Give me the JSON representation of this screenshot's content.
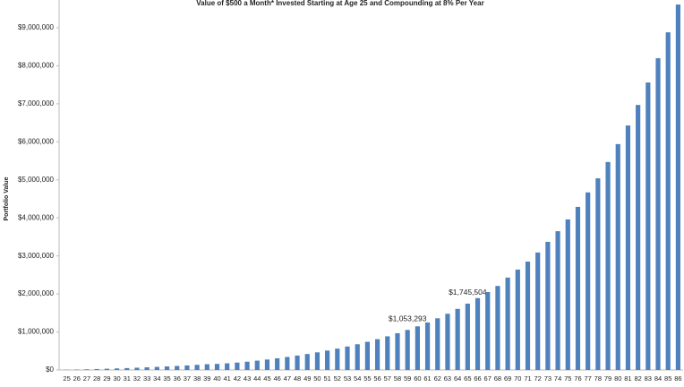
{
  "chart_data": {
    "type": "bar",
    "title": "Value of $500 a Month* Invested Starting at Age 25 and Compounding at 8% Per Year",
    "y_label": "Portfolio Value",
    "categories": [
      "25",
      "26",
      "27",
      "28",
      "29",
      "30",
      "31",
      "32",
      "33",
      "34",
      "35",
      "36",
      "37",
      "38",
      "39",
      "40",
      "41",
      "42",
      "43",
      "44",
      "45",
      "46",
      "47",
      "48",
      "49",
      "50",
      "51",
      "52",
      "53",
      "54",
      "55",
      "56",
      "57",
      "58",
      "59",
      "60",
      "61",
      "62",
      "63",
      "64",
      "65",
      "66",
      "67",
      "68",
      "69",
      "70",
      "71",
      "72",
      "73",
      "74",
      "75",
      "76",
      "77",
      "78",
      "79",
      "80",
      "81",
      "82",
      "83",
      "84",
      "85",
      "86"
    ],
    "values": [
      5600,
      11650,
      18180,
      25230,
      32850,
      41080,
      49970,
      59570,
      69940,
      81140,
      93230,
      106290,
      120390,
      135620,
      152070,
      160000,
      175000,
      195000,
      218000,
      245500,
      275200,
      307300,
      342000,
      379500,
      420000,
      463700,
      510900,
      561900,
      617000,
      676500,
      740700,
      810100,
      885000,
      965900,
      1053293,
      1147663,
      1249569,
      1359627,
      1478490,
      1606862,
      1745504,
      1890000,
      2050000,
      2210000,
      2430000,
      2640000,
      2850000,
      3090000,
      3370000,
      3650000,
      3960000,
      4290000,
      4670000,
      5040000,
      5470000,
      5940000,
      6430000,
      6970000,
      7560000,
      8200000,
      8880000,
      9610000
    ],
    "value_labels": {
      "34": "$1,053,293",
      "40": "$1,745,504"
    },
    "color": "#4f81bd",
    "ylim": [
      0,
      9730000
    ],
    "yticks": [
      {
        "value": 0,
        "label": "$0"
      },
      {
        "value": 1000000,
        "label": "$1,000,000"
      },
      {
        "value": 2000000,
        "label": "$2,000,000"
      },
      {
        "value": 3000000,
        "label": "$3,000,000"
      },
      {
        "value": 4000000,
        "label": "$4,000,000"
      },
      {
        "value": 5000000,
        "label": "$5,000,000"
      },
      {
        "value": 6000000,
        "label": "$6,000,000"
      },
      {
        "value": 7000000,
        "label": "$7,000,000"
      },
      {
        "value": 8000000,
        "label": "$8,000,000"
      },
      {
        "value": 9000000,
        "label": "$9,000,000"
      }
    ],
    "grid": false
  }
}
